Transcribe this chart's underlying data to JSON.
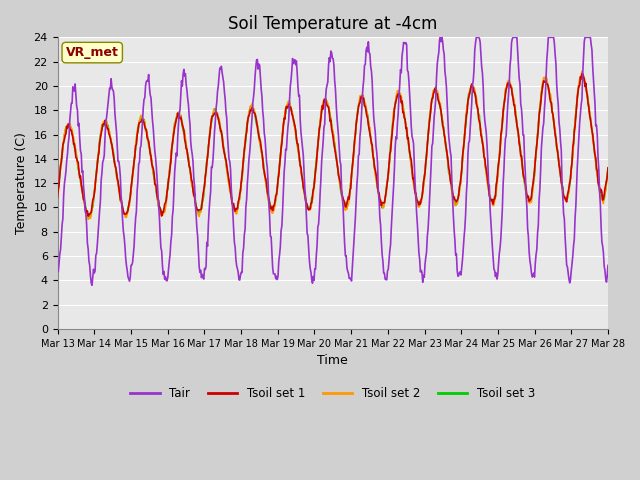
{
  "title": "Soil Temperature at -4cm",
  "xlabel": "Time",
  "ylabel": "Temperature (C)",
  "ylim": [
    0,
    24
  ],
  "start_day": 13,
  "n_days": 15,
  "colors": {
    "Tair": "#9933cc",
    "Tsoil1": "#cc0000",
    "Tsoil2": "#ff9900",
    "Tsoil3": "#00cc00"
  },
  "legend_labels": [
    "Tair",
    "Tsoil set 1",
    "Tsoil set 2",
    "Tsoil set 3"
  ],
  "annotation_text": "VR_met",
  "annotation_color": "#8b0000",
  "annotation_bg": "#ffffcc",
  "plot_bg": "#e8e8e8",
  "fig_bg": "#d0d0d0",
  "grid_color": "#ffffff",
  "title_fontsize": 12,
  "axis_fontsize": 9,
  "tick_fontsize": 8,
  "line_width": 1.2
}
